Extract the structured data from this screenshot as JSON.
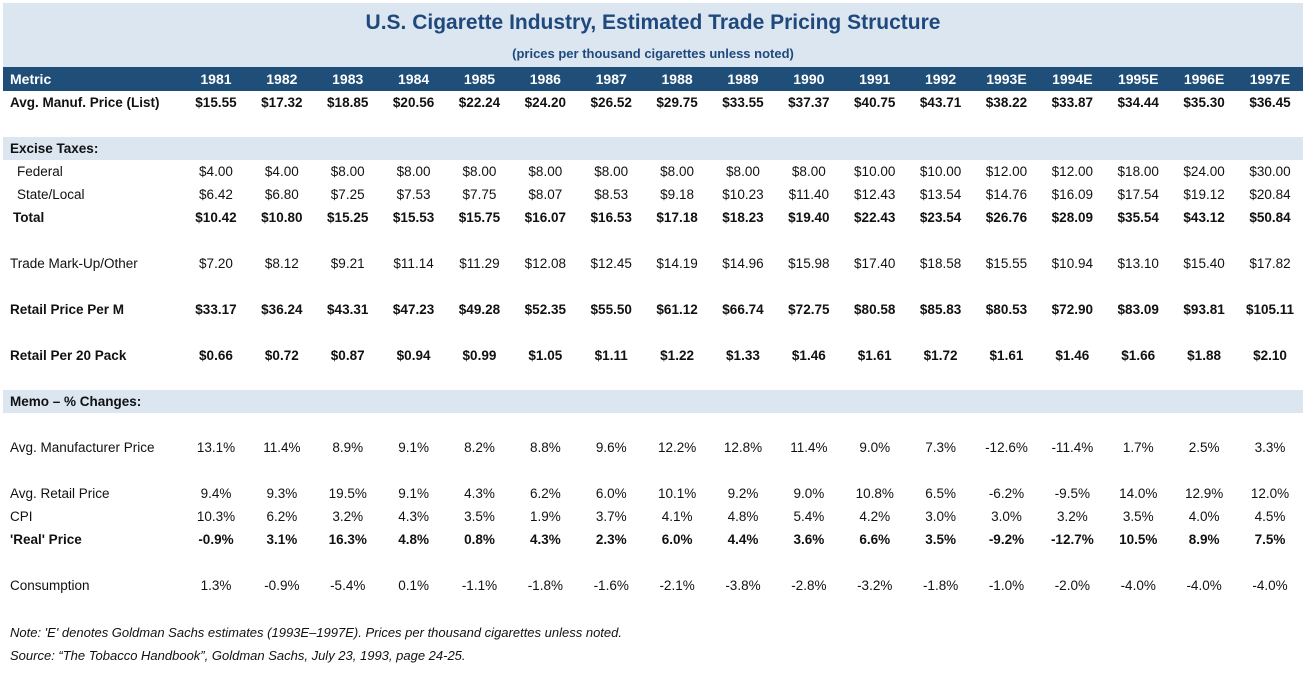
{
  "title": "U.S. Cigarette Industry, Estimated Trade Pricing Structure",
  "subtitle": "(prices per thousand cigarettes unless noted)",
  "header": {
    "metric_label": "Metric",
    "years": [
      "1981",
      "1982",
      "1983",
      "1984",
      "1985",
      "1986",
      "1987",
      "1988",
      "1989",
      "1990",
      "1991",
      "1992",
      "1993E",
      "1994E",
      "1995E",
      "1996E",
      "1997E"
    ]
  },
  "rows": {
    "manuf_price": {
      "label": "Avg. Manuf. Price (List)",
      "values": [
        "$15.55",
        "$17.32",
        "$18.85",
        "$20.56",
        "$22.24",
        "$24.20",
        "$26.52",
        "$29.75",
        "$33.55",
        "$37.37",
        "$40.75",
        "$43.71",
        "$38.22",
        "$33.87",
        "$34.44",
        "$35.30",
        "$36.45"
      ]
    },
    "excise_header": {
      "label": "Excise Taxes:"
    },
    "federal": {
      "label": "Federal",
      "values": [
        "$4.00",
        "$4.00",
        "$8.00",
        "$8.00",
        "$8.00",
        "$8.00",
        "$8.00",
        "$8.00",
        "$8.00",
        "$8.00",
        "$10.00",
        "$10.00",
        "$12.00",
        "$12.00",
        "$18.00",
        "$24.00",
        "$30.00"
      ]
    },
    "state_local": {
      "label": "State/Local",
      "values": [
        "$6.42",
        "$6.80",
        "$7.25",
        "$7.53",
        "$7.75",
        "$8.07",
        "$8.53",
        "$9.18",
        "$10.23",
        "$11.40",
        "$12.43",
        "$13.54",
        "$14.76",
        "$16.09",
        "$17.54",
        "$19.12",
        "$20.84"
      ]
    },
    "total": {
      "label": "Total",
      "values": [
        "$10.42",
        "$10.80",
        "$15.25",
        "$15.53",
        "$15.75",
        "$16.07",
        "$16.53",
        "$17.18",
        "$18.23",
        "$19.40",
        "$22.43",
        "$23.54",
        "$26.76",
        "$28.09",
        "$35.54",
        "$43.12",
        "$50.84"
      ]
    },
    "markup": {
      "label": "Trade Mark-Up/Other",
      "values": [
        "$7.20",
        "$8.12",
        "$9.21",
        "$11.14",
        "$11.29",
        "$12.08",
        "$12.45",
        "$14.19",
        "$14.96",
        "$15.98",
        "$17.40",
        "$18.58",
        "$15.55",
        "$10.94",
        "$13.10",
        "$15.40",
        "$17.82"
      ]
    },
    "retail_m": {
      "label": "Retail Price Per M",
      "values": [
        "$33.17",
        "$36.24",
        "$43.31",
        "$47.23",
        "$49.28",
        "$52.35",
        "$55.50",
        "$61.12",
        "$66.74",
        "$72.75",
        "$80.58",
        "$85.83",
        "$80.53",
        "$72.90",
        "$83.09",
        "$93.81",
        "$105.11"
      ]
    },
    "retail_pack": {
      "label": "Retail Per 20 Pack",
      "values": [
        "$0.66",
        "$0.72",
        "$0.87",
        "$0.94",
        "$0.99",
        "$1.05",
        "$1.11",
        "$1.22",
        "$1.33",
        "$1.46",
        "$1.61",
        "$1.72",
        "$1.61",
        "$1.46",
        "$1.66",
        "$1.88",
        "$2.10"
      ]
    },
    "memo_header": {
      "label": "Memo – % Changes:"
    },
    "avg_manuf_chg": {
      "label": "Avg. Manufacturer Price",
      "values": [
        "13.1%",
        "11.4%",
        "8.9%",
        "9.1%",
        "8.2%",
        "8.8%",
        "9.6%",
        "12.2%",
        "12.8%",
        "11.4%",
        "9.0%",
        "7.3%",
        "-12.6%",
        "-11.4%",
        "1.7%",
        "2.5%",
        "3.3%"
      ]
    },
    "avg_retail_chg": {
      "label": "Avg. Retail Price",
      "values": [
        "9.4%",
        "9.3%",
        "19.5%",
        "9.1%",
        "4.3%",
        "6.2%",
        "6.0%",
        "10.1%",
        "9.2%",
        "9.0%",
        "10.8%",
        "6.5%",
        "-6.2%",
        "-9.5%",
        "14.0%",
        "12.9%",
        "12.0%"
      ]
    },
    "cpi": {
      "label": "CPI",
      "values": [
        "10.3%",
        "6.2%",
        "3.2%",
        "4.3%",
        "3.5%",
        "1.9%",
        "3.7%",
        "4.1%",
        "4.8%",
        "5.4%",
        "4.2%",
        "3.0%",
        "3.0%",
        "3.2%",
        "3.5%",
        "4.0%",
        "4.5%"
      ]
    },
    "real_price": {
      "label": "'Real' Price",
      "values": [
        "-0.9%",
        "3.1%",
        "16.3%",
        "4.8%",
        "0.8%",
        "4.3%",
        "2.3%",
        "6.0%",
        "4.4%",
        "3.6%",
        "6.6%",
        "3.5%",
        "-9.2%",
        "-12.7%",
        "10.5%",
        "8.9%",
        "7.5%"
      ]
    },
    "consumption": {
      "label": "Consumption",
      "values": [
        "1.3%",
        "-0.9%",
        "-5.4%",
        "0.1%",
        "-1.1%",
        "-1.8%",
        "-1.6%",
        "-2.1%",
        "-3.8%",
        "-2.8%",
        "-3.2%",
        "-1.8%",
        "-1.0%",
        "-2.0%",
        "-4.0%",
        "-4.0%",
        "-4.0%"
      ]
    }
  },
  "notes": {
    "note": "Note: 'E' denotes Goldman Sachs estimates (1993E–1997E). Prices per thousand cigarettes unless noted.",
    "source": "Source: “The Tobacco Handbook”, Goldman Sachs, July 23, 1993, page 24-25."
  },
  "colors": {
    "header_bg": "#1f4e78",
    "band_bg": "#dbe6f1",
    "title": "#1f497d"
  }
}
